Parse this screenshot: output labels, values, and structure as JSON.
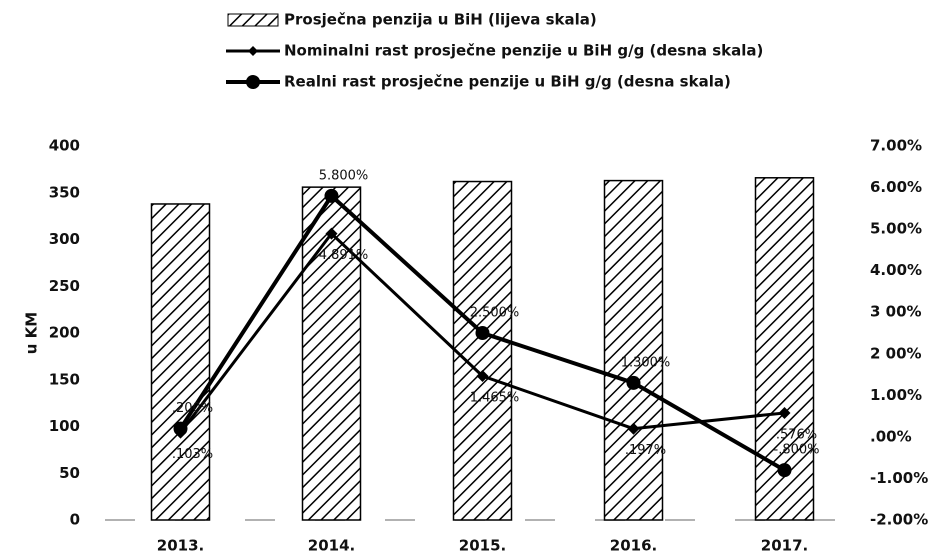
{
  "chart_data": {
    "type": "bar-line",
    "legend": [
      "Prosječna penzija u BiH (lijeva skala)",
      "Nominalni rast prosječne penzije u BiH g/g (desna skala)",
      "Realni rast prosječne penzije u BiH g/g (desna skala)"
    ],
    "y_label": "u KM",
    "categories": [
      "2013.",
      "2014.",
      "2015.",
      "2016.",
      "2017."
    ],
    "series": [
      {
        "name": "Prosječna penzija u BiH (lijeva skala)",
        "color": "#000000",
        "values": [
          338,
          356,
          362,
          363,
          366
        ]
      },
      {
        "name": "Nominalni rast prosječne penzije u BiH g/g (desna skala)",
        "color": "#000000",
        "axis": "y2",
        "marker": "diamond",
        "values": [
          0.103,
          4.891,
          1.465,
          0.197,
          0.576
        ],
        "value_labels": [
          ".103%",
          "4.891%",
          "1.465%",
          ".197%",
          ".576%"
        ]
      },
      {
        "name": "Realni rast prosječne penzije u BiH g/g (desna skala)",
        "color": "#000000",
        "axis": "y2",
        "marker": "circle",
        "values": [
          0.2,
          5.8,
          2.5,
          1.3,
          -0.8
        ],
        "value_labels": [
          ".200%",
          "5.800%",
          "2.500%",
          "1.300%",
          "-.800%"
        ]
      }
    ],
    "ylim": [
      0,
      400
    ],
    "yticks": [
      0,
      50,
      100,
      150,
      200,
      250,
      300,
      350,
      400
    ],
    "y2lim": [
      -2,
      7
    ],
    "y2ticks": [
      {
        "value": -2,
        "label": "-2.00%"
      },
      {
        "value": -1,
        "label": "-1.00%"
      },
      {
        "value": 0,
        "label": ".00%"
      },
      {
        "value": 1,
        "label": "1.00%"
      },
      {
        "value": 2,
        "label": "2 00%"
      },
      {
        "value": 3,
        "label": "3 00%"
      },
      {
        "value": 4,
        "label": "4.00%"
      },
      {
        "value": 5,
        "label": "5.00%"
      },
      {
        "value": 6,
        "label": "6.00%"
      },
      {
        "value": 7,
        "label": "7.00%"
      }
    ]
  }
}
